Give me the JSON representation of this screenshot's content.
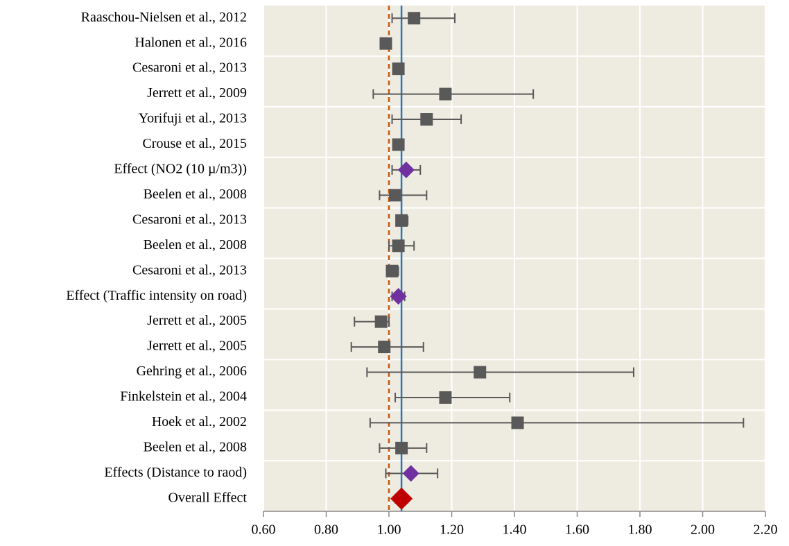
{
  "chart_data": {
    "type": "forest",
    "categories": [
      "Raaschou-Nielsen et al., 2012",
      "Halonen et al., 2016",
      "Cesaroni et al., 2013",
      "Jerrett et al., 2009",
      "Yorifuji et al., 2013",
      "Crouse et al., 2015",
      "Effect (NO2 (10 µ/m3))",
      "Beelen et al., 2008",
      "Cesaroni et al., 2013",
      "Beelen et al., 2008",
      "Cesaroni et al., 2013",
      "Effect (Traffic intensity on road)",
      "Jerrett et al., 2005",
      "Jerrett et al., 2005",
      "Gehring et al., 2006",
      "Finkelstein et al., 2004",
      "Hoek et al., 2002",
      "Beelen et al., 2008",
      "Effects (Distance to raod)",
      "Overall Effect"
    ],
    "series": [
      {
        "name": "estimate",
        "values": [
          1.08,
          0.99,
          1.03,
          1.18,
          1.12,
          1.03,
          1.055,
          1.02,
          1.04,
          1.03,
          1.01,
          1.03,
          0.975,
          0.985,
          1.29,
          1.18,
          1.41,
          1.04,
          1.07,
          1.04
        ]
      },
      {
        "name": "lower",
        "values": [
          1.01,
          0.98,
          1.02,
          0.95,
          1.01,
          1.02,
          1.01,
          0.97,
          1.03,
          1.0,
          1.0,
          1.01,
          0.89,
          0.88,
          0.93,
          1.02,
          0.94,
          0.97,
          0.99,
          1.02
        ]
      },
      {
        "name": "upper",
        "values": [
          1.21,
          1.0,
          1.04,
          1.46,
          1.23,
          1.04,
          1.1,
          1.12,
          1.06,
          1.08,
          1.03,
          1.05,
          1.0,
          1.11,
          1.78,
          1.385,
          2.13,
          1.12,
          1.155,
          1.06
        ]
      }
    ],
    "markers": [
      "square",
      "square",
      "square",
      "square",
      "square",
      "square",
      "diamond",
      "square",
      "square",
      "square",
      "square",
      "diamond",
      "square",
      "square",
      "square",
      "square",
      "square",
      "square",
      "diamond",
      "big-diamond"
    ],
    "marker_colors": [
      "#595959",
      "#595959",
      "#595959",
      "#595959",
      "#595959",
      "#595959",
      "#7030a0",
      "#595959",
      "#595959",
      "#595959",
      "#595959",
      "#7030a0",
      "#595959",
      "#595959",
      "#595959",
      "#595959",
      "#595959",
      "#595959",
      "#7030a0",
      "#c00000"
    ],
    "whisker_color": "#595959",
    "reference_lines": [
      {
        "value": 1.0,
        "color": "#c55a11",
        "style": "dashed"
      },
      {
        "value": 1.04,
        "color": "#2e75b6",
        "style": "solid"
      }
    ],
    "xlim": [
      0.6,
      2.2
    ],
    "xticks": [
      {
        "value": 0.6,
        "label": "0.60"
      },
      {
        "value": 0.8,
        "label": "0.80"
      },
      {
        "value": 1.0,
        "label": "1.00"
      },
      {
        "value": 1.2,
        "label": "1.20"
      },
      {
        "value": 1.4,
        "label": "1.40"
      },
      {
        "value": 1.6,
        "label": "1.60"
      },
      {
        "value": 1.8,
        "label": "1.80"
      },
      {
        "value": 2.0,
        "label": "2.00"
      },
      {
        "value": 2.2,
        "label": "2.20"
      }
    ],
    "grid": true,
    "background": "#eeece1"
  }
}
